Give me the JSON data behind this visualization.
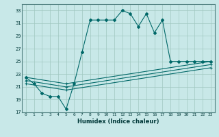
{
  "xlabel": "Humidex (Indice chaleur)",
  "bg_color": "#c8e8e8",
  "grid_color": "#a0c8c0",
  "line_color": "#006868",
  "xlim": [
    -0.5,
    23.5
  ],
  "ylim": [
    17,
    34
  ],
  "yticks": [
    17,
    19,
    21,
    23,
    25,
    27,
    29,
    31,
    33
  ],
  "xticks": [
    0,
    1,
    2,
    3,
    4,
    5,
    6,
    7,
    8,
    9,
    10,
    11,
    12,
    13,
    14,
    15,
    16,
    17,
    18,
    19,
    20,
    21,
    22,
    23
  ],
  "line1_x": [
    0,
    1,
    2,
    3,
    4,
    5,
    6,
    7,
    8,
    9,
    10,
    11,
    12,
    13,
    14,
    15,
    16,
    17,
    18,
    19,
    20,
    21,
    22,
    23
  ],
  "line1_y": [
    22.5,
    21.5,
    20.0,
    19.5,
    19.5,
    17.5,
    21.5,
    26.5,
    31.5,
    31.5,
    31.5,
    31.5,
    33.0,
    32.5,
    30.5,
    32.5,
    29.5,
    31.5,
    25.0,
    25.0,
    25.0,
    25.0,
    25.0,
    25.0
  ],
  "line2_x": [
    0,
    5,
    23
  ],
  "line2_y": [
    22.5,
    21.5,
    25.0
  ],
  "line3_x": [
    0,
    5,
    23
  ],
  "line3_y": [
    22.0,
    21.0,
    24.5
  ],
  "line4_x": [
    0,
    5,
    23
  ],
  "line4_y": [
    21.5,
    20.5,
    24.0
  ]
}
